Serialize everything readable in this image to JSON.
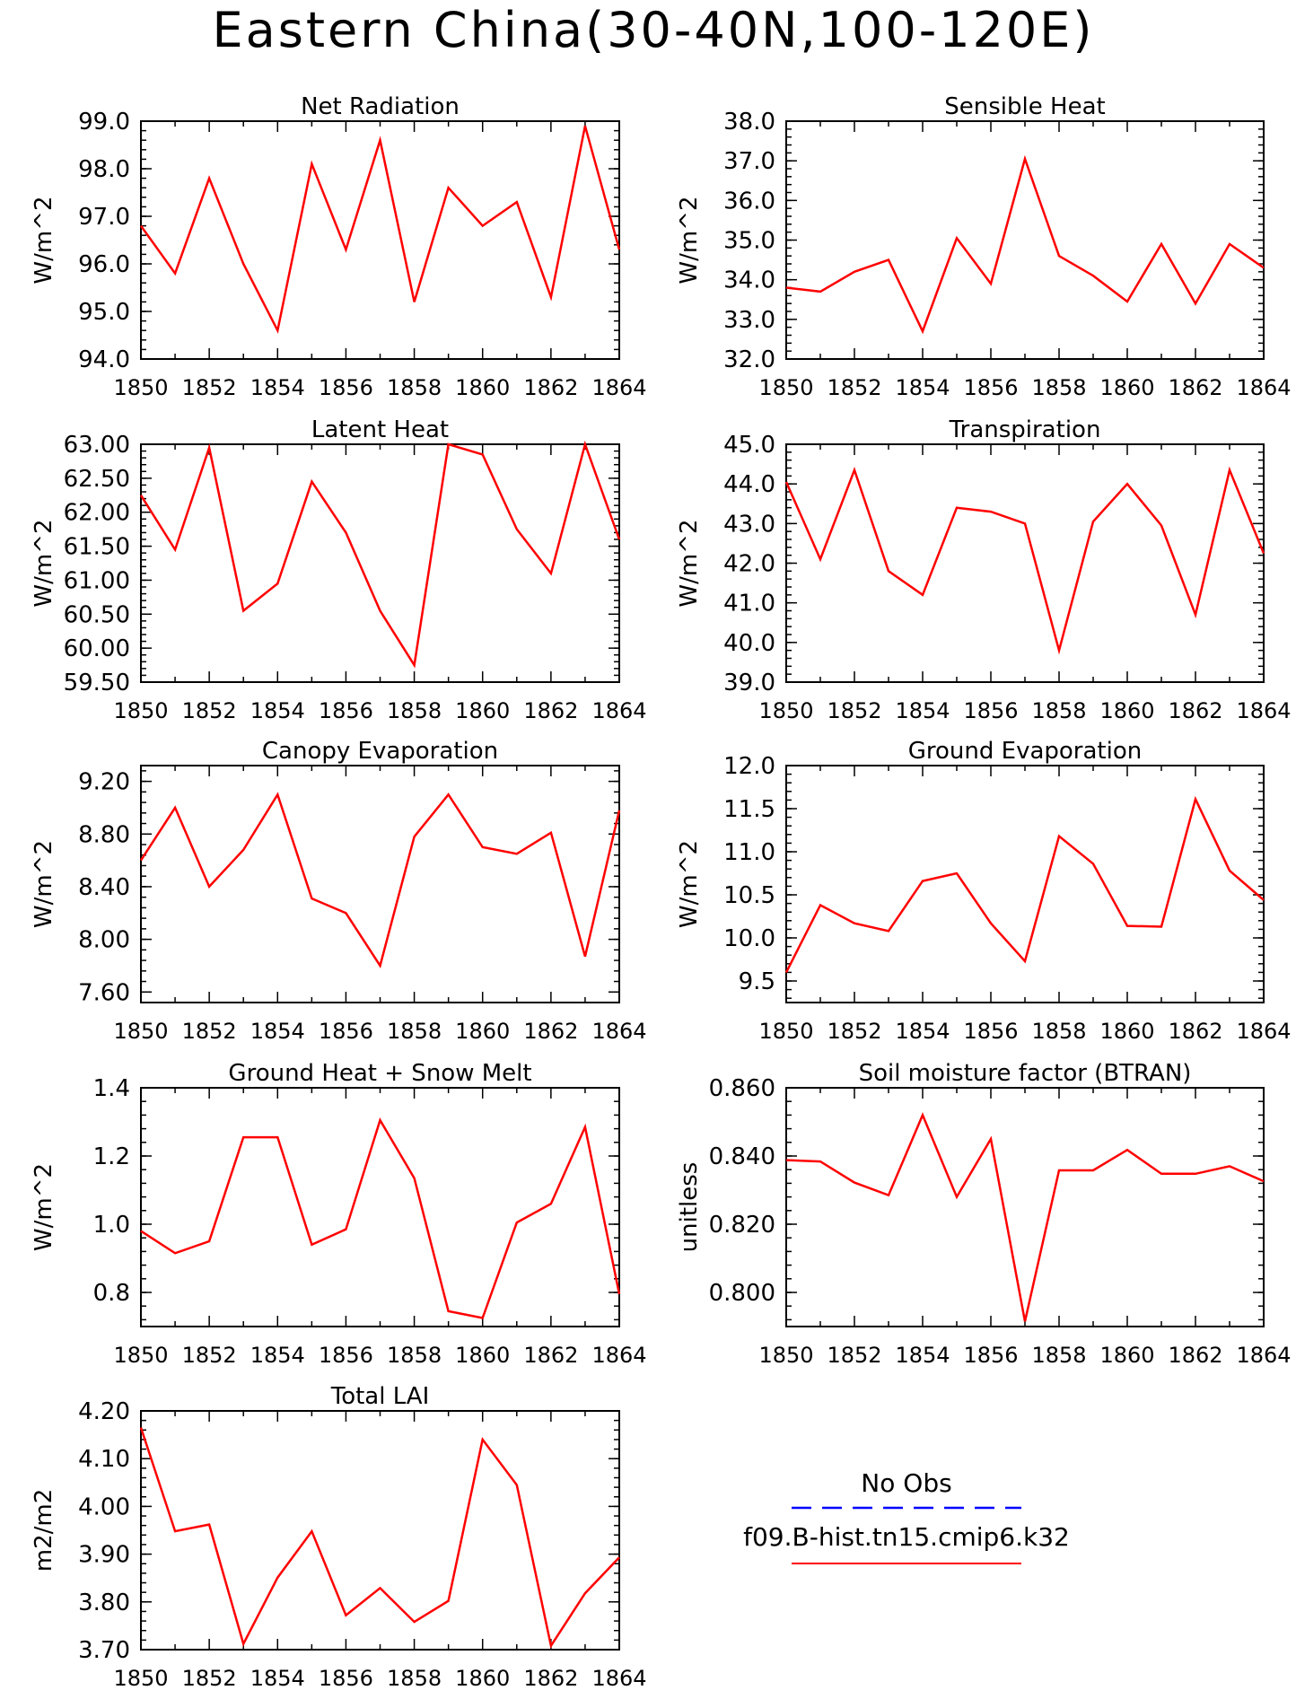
{
  "title": "Eastern China(30-40N,100-120E)",
  "x_tick_labels": [
    "1850",
    "1852",
    "1854",
    "1856",
    "1858",
    "1860",
    "1862",
    "1864"
  ],
  "colors": {
    "series": "#ff0000",
    "obs": "#0000ff",
    "axis": "#000000"
  },
  "legend": {
    "obs_label": "No Obs",
    "model_label": "f09.B-hist.tn15.cmip6.k32",
    "placement": "bottom-right"
  },
  "chart_data": [
    {
      "type": "line",
      "title": "Net Radiation",
      "ylabel": "W/m^2",
      "x": [
        1850,
        1851,
        1852,
        1853,
        1854,
        1855,
        1856,
        1857,
        1858,
        1859,
        1860,
        1861,
        1862,
        1863,
        1864
      ],
      "xlim": [
        1850,
        1864
      ],
      "ylim": [
        94.0,
        99.0
      ],
      "yticks": [
        "94.0",
        "95.0",
        "96.0",
        "97.0",
        "98.0",
        "99.0"
      ],
      "series": [
        {
          "name": "f09.B-hist.tn15.cmip6.k32",
          "values": [
            96.8,
            95.8,
            97.8,
            96.0,
            94.6,
            98.1,
            96.3,
            98.6,
            95.2,
            97.6,
            96.8,
            97.3,
            95.3,
            98.9,
            96.3
          ]
        }
      ]
    },
    {
      "type": "line",
      "title": "Sensible Heat",
      "ylabel": "W/m^2",
      "x": [
        1850,
        1851,
        1852,
        1853,
        1854,
        1855,
        1856,
        1857,
        1858,
        1859,
        1860,
        1861,
        1862,
        1863,
        1864
      ],
      "xlim": [
        1850,
        1864
      ],
      "ylim": [
        32.0,
        38.0
      ],
      "yticks": [
        "32.0",
        "33.0",
        "34.0",
        "35.0",
        "36.0",
        "37.0",
        "38.0"
      ],
      "series": [
        {
          "name": "f09.B-hist.tn15.cmip6.k32",
          "values": [
            33.8,
            33.7,
            34.2,
            34.5,
            32.7,
            35.05,
            33.9,
            37.05,
            34.6,
            34.1,
            33.45,
            34.9,
            33.4,
            34.9,
            34.3
          ]
        }
      ]
    },
    {
      "type": "line",
      "title": "Latent Heat",
      "ylabel": "W/m^2",
      "x": [
        1850,
        1851,
        1852,
        1853,
        1854,
        1855,
        1856,
        1857,
        1858,
        1859,
        1860,
        1861,
        1862,
        1863,
        1864
      ],
      "xlim": [
        1850,
        1864
      ],
      "ylim": [
        59.5,
        63.0
      ],
      "yticks": [
        "59.50",
        "60.00",
        "60.50",
        "61.00",
        "61.50",
        "62.00",
        "62.50",
        "63.00"
      ],
      "series": [
        {
          "name": "f09.B-hist.tn15.cmip6.k32",
          "values": [
            62.25,
            61.45,
            62.95,
            60.55,
            60.95,
            62.45,
            61.7,
            60.55,
            59.75,
            63.0,
            62.85,
            61.75,
            61.1,
            63.0,
            61.6
          ]
        }
      ]
    },
    {
      "type": "line",
      "title": "Transpiration",
      "ylabel": "W/m^2",
      "x": [
        1850,
        1851,
        1852,
        1853,
        1854,
        1855,
        1856,
        1857,
        1858,
        1859,
        1860,
        1861,
        1862,
        1863,
        1864
      ],
      "xlim": [
        1850,
        1864
      ],
      "ylim": [
        39.0,
        45.0
      ],
      "yticks": [
        "39.0",
        "40.0",
        "41.0",
        "42.0",
        "43.0",
        "44.0",
        "45.0"
      ],
      "series": [
        {
          "name": "f09.B-hist.tn15.cmip6.k32",
          "values": [
            44.05,
            42.1,
            44.35,
            41.8,
            41.2,
            43.4,
            43.3,
            43.0,
            39.8,
            43.05,
            44.0,
            42.95,
            40.7,
            44.35,
            42.25
          ]
        }
      ]
    },
    {
      "type": "line",
      "title": "Canopy Evaporation",
      "ylabel": "W/m^2",
      "x": [
        1850,
        1851,
        1852,
        1853,
        1854,
        1855,
        1856,
        1857,
        1858,
        1859,
        1860,
        1861,
        1862,
        1863,
        1864
      ],
      "xlim": [
        1850,
        1864
      ],
      "ylim": [
        7.52,
        9.32
      ],
      "yticks": [
        "7.60",
        "8.00",
        "8.40",
        "8.80",
        "9.20"
      ],
      "series": [
        {
          "name": "f09.B-hist.tn15.cmip6.k32",
          "values": [
            8.6,
            9.0,
            8.4,
            8.68,
            9.1,
            8.31,
            8.2,
            7.8,
            8.78,
            9.1,
            8.7,
            8.65,
            8.81,
            7.87,
            8.98
          ]
        }
      ]
    },
    {
      "type": "line",
      "title": "Ground Evaporation",
      "ylabel": "W/m^2",
      "x": [
        1850,
        1851,
        1852,
        1853,
        1854,
        1855,
        1856,
        1857,
        1858,
        1859,
        1860,
        1861,
        1862,
        1863,
        1864
      ],
      "xlim": [
        1850,
        1864
      ],
      "ylim": [
        9.25,
        12.0
      ],
      "yticks": [
        "9.5",
        "10.0",
        "10.5",
        "11.0",
        "11.5",
        "12.0"
      ],
      "series": [
        {
          "name": "f09.B-hist.tn15.cmip6.k32",
          "values": [
            9.6,
            10.38,
            10.17,
            10.08,
            10.66,
            10.75,
            10.17,
            9.73,
            11.18,
            10.86,
            10.14,
            10.13,
            11.61,
            10.78,
            10.44
          ]
        }
      ]
    },
    {
      "type": "line",
      "title": "Ground Heat + Snow Melt",
      "ylabel": "W/m^2",
      "x": [
        1850,
        1851,
        1852,
        1853,
        1854,
        1855,
        1856,
        1857,
        1858,
        1859,
        1860,
        1861,
        1862,
        1863,
        1864
      ],
      "xlim": [
        1850,
        1864
      ],
      "ylim": [
        0.7,
        1.4
      ],
      "yticks": [
        "0.8",
        "1.0",
        "1.2",
        "1.4"
      ],
      "series": [
        {
          "name": "f09.B-hist.tn15.cmip6.k32",
          "values": [
            0.98,
            0.915,
            0.95,
            1.255,
            1.255,
            0.94,
            0.985,
            1.305,
            1.135,
            0.745,
            0.725,
            1.005,
            1.06,
            1.285,
            0.795
          ]
        }
      ]
    },
    {
      "type": "line",
      "title": "Soil moisture factor (BTRAN)",
      "ylabel": "unitless",
      "x": [
        1850,
        1851,
        1852,
        1853,
        1854,
        1855,
        1856,
        1857,
        1858,
        1859,
        1860,
        1861,
        1862,
        1863,
        1864
      ],
      "xlim": [
        1850,
        1864
      ],
      "ylim": [
        0.79,
        0.86
      ],
      "yticks": [
        "0.800",
        "0.820",
        "0.840",
        "0.860"
      ],
      "series": [
        {
          "name": "f09.B-hist.tn15.cmip6.k32",
          "values": [
            0.8388,
            0.8384,
            0.8322,
            0.8285,
            0.852,
            0.828,
            0.845,
            0.7915,
            0.8358,
            0.8358,
            0.8418,
            0.8348,
            0.8348,
            0.837,
            0.8326
          ]
        }
      ]
    },
    {
      "type": "line",
      "title": "Total LAI",
      "ylabel": "m2/m2",
      "x": [
        1850,
        1851,
        1852,
        1853,
        1854,
        1855,
        1856,
        1857,
        1858,
        1859,
        1860,
        1861,
        1862,
        1863,
        1864
      ],
      "xlim": [
        1850,
        1864
      ],
      "ylim": [
        3.7,
        4.2
      ],
      "yticks": [
        "3.70",
        "3.80",
        "3.90",
        "4.00",
        "4.10",
        "4.20"
      ],
      "series": [
        {
          "name": "f09.B-hist.tn15.cmip6.k32",
          "values": [
            4.165,
            3.948,
            3.962,
            3.712,
            3.851,
            3.948,
            3.772,
            3.829,
            3.758,
            3.802,
            4.14,
            4.045,
            3.708,
            3.818,
            3.893
          ]
        }
      ]
    }
  ]
}
